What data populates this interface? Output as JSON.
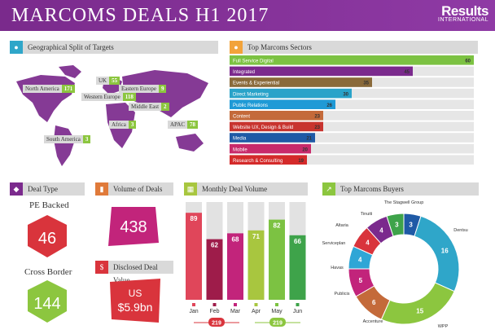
{
  "header": {
    "title": "MARCOMS DEALS  H1 2017",
    "logo_main": "Results",
    "logo_sub": "INTERNATIONAL"
  },
  "panels": {
    "geo": "Geographical Split of Targets",
    "sectors": "Top Marcoms Sectors",
    "deal_type": "Deal Type",
    "volume": "Volume of Deals",
    "monthly": "Monthly Deal Volume",
    "buyers": "Top Marcoms Buyers",
    "value": "Disclosed Deal Value"
  },
  "geo_regions": [
    {
      "name": "North America",
      "value": 171
    },
    {
      "name": "UK",
      "value": 55
    },
    {
      "name": "Eastern Europe",
      "value": 9
    },
    {
      "name": "Western Europe",
      "value": 118
    },
    {
      "name": "Middle East",
      "value": 2
    },
    {
      "name": "Africa",
      "value": 3
    },
    {
      "name": "APAC",
      "value": 78
    },
    {
      "name": "South America",
      "value": 3
    }
  ],
  "deal_type": {
    "pe_label": "PE Backed",
    "pe_value": "46",
    "cb_label": "Cross Border",
    "cb_value": "144"
  },
  "volume": {
    "value": "438"
  },
  "value": {
    "line1": "US",
    "line2": "$5.9bn"
  },
  "colors": {
    "purple": "#7a2a8c",
    "green": "#8cc63f",
    "red": "#d9343c",
    "magenta": "#c2247b"
  },
  "chart_data": [
    {
      "type": "bar",
      "title": "Top Marcoms Sectors",
      "categories": [
        "Full Service Digital",
        "Integrated",
        "Events & Experiential",
        "Direct Marketing",
        "Public Relations",
        "Content",
        "Website UX, Design & Build",
        "Media",
        "Mobile",
        "Research & Consulting"
      ],
      "values": [
        60,
        45,
        35,
        30,
        26,
        23,
        23,
        21,
        20,
        19
      ],
      "colors": [
        "#7cc242",
        "#7b2a8d",
        "#8a6a3a",
        "#29a3c9",
        "#1f9ad6",
        "#c46a3a",
        "#c8342f",
        "#1f5aa6",
        "#c82a6b",
        "#d42a2a"
      ]
    },
    {
      "type": "bar",
      "title": "Monthly Deal Volume",
      "categories": [
        "Jan",
        "Feb",
        "Mar",
        "Apr",
        "May",
        "Jun"
      ],
      "values": [
        89,
        62,
        68,
        71,
        82,
        66
      ],
      "colors": [
        "#e0465a",
        "#9e1c4a",
        "#c2247b",
        "#a8c63f",
        "#7cc242",
        "#3ea34a"
      ],
      "group_totals": [
        "219",
        "219"
      ]
    },
    {
      "type": "pie",
      "title": "Top Marcoms Buyers",
      "labels": [
        "The Stagwell Group",
        "Dentsu",
        "WPP",
        "Accenture",
        "Publicis",
        "Havas",
        "Serviceplan",
        "Altaria",
        "Tinuiti"
      ],
      "values": [
        3,
        16,
        15,
        6,
        5,
        4,
        4,
        4,
        3
      ],
      "colors": [
        "#1f5aa6",
        "#2fa6c9",
        "#8cc63f",
        "#c46a3a",
        "#c2247b",
        "#2fa6d6",
        "#d9343c",
        "#7b2a8d",
        "#3ea34a"
      ]
    }
  ]
}
